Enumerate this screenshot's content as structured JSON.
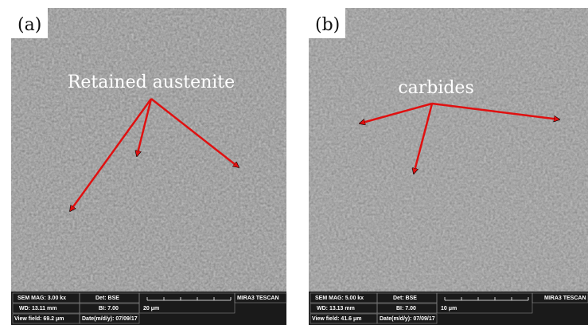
{
  "panels": [
    {
      "label": "(a)",
      "annotation": "Retained austenite",
      "info": {
        "mag": "SEM MAG: 3.00 kx",
        "det": "Det: BSE",
        "brand": "MIRA3 TESCAN",
        "wd": "WD: 13.11 mm",
        "bi": "BI: 7.00",
        "scale": "20 μm",
        "view": "View field: 69.2 μm",
        "date": "Date(m/d/y): 07/09/17"
      }
    },
    {
      "label": "(b)",
      "annotation": "carbides",
      "info": {
        "mag": "SEM MAG: 5.00 kx",
        "det": "Det: BSE",
        "brand": "MIRA3 TESCAN",
        "wd": "WD: 13.13 mm",
        "bi": "BI: 7.00",
        "scale": "10 μm",
        "view": "View field: 41.6 μm",
        "date": "Date(m/d/y): 07/09/17"
      }
    }
  ]
}
